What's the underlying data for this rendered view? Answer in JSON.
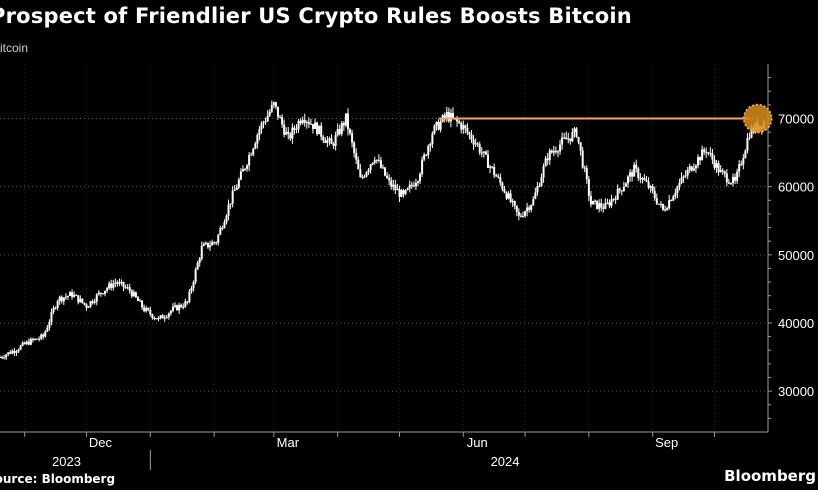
{
  "colors": {
    "background": "#000000",
    "price": "#ffffff",
    "reference_line": "#f4a36c",
    "marker_fill": "#d98c1a",
    "grid": "#5a5a5a",
    "axis": "#9a9a9a",
    "text_muted": "#cfcfcf"
  },
  "chart_data": {
    "type": "line",
    "style": "candlestick-like daily range bars",
    "title": "Prospect of Friendlier US Crypto Rules Boosts Bitcoin",
    "subtitle": "Bitcoin",
    "source": "Source: Bloomberg",
    "brand": "Bloomberg",
    "xlabel": "",
    "ylabel": "",
    "y_axis_position": "right",
    "grid": "horizontal dotted",
    "ylim": [
      24000,
      78000
    ],
    "y_ticks": [
      30000,
      40000,
      50000,
      60000,
      70000
    ],
    "y_tick_labels": [
      "30000",
      "40000",
      "50000",
      "60000",
      "70000"
    ],
    "x_range": [
      "2023-10-20",
      "2024-10-27"
    ],
    "x_month_ticks": [
      {
        "date": "2023-12-01",
        "label": "Dec"
      },
      {
        "date": "2024-03-01",
        "label": "Mar"
      },
      {
        "date": "2024-06-01",
        "label": "Jun"
      },
      {
        "date": "2024-09-01",
        "label": "Sep"
      }
    ],
    "x_minor_ticks": [
      "2023-11-01",
      "2023-12-01",
      "2024-01-01",
      "2024-02-01",
      "2024-03-01",
      "2024-04-01",
      "2024-05-01",
      "2024-06-01",
      "2024-07-01",
      "2024-08-01",
      "2024-09-01",
      "2024-10-01"
    ],
    "x_year_labels": [
      {
        "label": "2023",
        "date": "2023-12-01"
      },
      {
        "label": "2024",
        "date": "2024-07-01"
      }
    ],
    "year_boundary": "2024-01-01",
    "reference_line": {
      "value": 70000,
      "from": "2024-05-20",
      "to": "2024-10-27"
    },
    "highlight": {
      "date": "2024-10-22",
      "value": 70000
    },
    "series": [
      {
        "x": [
          "2023-10-20",
          "2023-10-27",
          "2023-11-03",
          "2023-11-10",
          "2023-11-17",
          "2023-11-24",
          "2023-12-01",
          "2023-12-08",
          "2023-12-15",
          "2023-12-22",
          "2023-12-29",
          "2024-01-05",
          "2024-01-12",
          "2024-01-19",
          "2024-01-26",
          "2024-02-02",
          "2024-02-09",
          "2024-02-16",
          "2024-02-23",
          "2024-03-01",
          "2024-03-08",
          "2024-03-15",
          "2024-03-22",
          "2024-03-29",
          "2024-04-05",
          "2024-04-12",
          "2024-04-19",
          "2024-04-26",
          "2024-05-03",
          "2024-05-10",
          "2024-05-17",
          "2024-05-24",
          "2024-05-31",
          "2024-06-07",
          "2024-06-14",
          "2024-06-21",
          "2024-06-28",
          "2024-07-05",
          "2024-07-12",
          "2024-07-19",
          "2024-07-26",
          "2024-08-02",
          "2024-08-09",
          "2024-08-16",
          "2024-08-23",
          "2024-08-30",
          "2024-09-06",
          "2024-09-13",
          "2024-09-20",
          "2024-09-27",
          "2024-10-04",
          "2024-10-11",
          "2024-10-18",
          "2024-10-25"
        ],
        "values": [
          35000,
          36000,
          37200,
          38000,
          43500,
          44200,
          42500,
          44500,
          46000,
          44800,
          42000,
          40500,
          42000,
          43000,
          51000,
          52000,
          58000,
          63000,
          68500,
          72000,
          67000,
          70500,
          68500,
          66000,
          70000,
          61000,
          64500,
          60500,
          58500,
          61500,
          68000,
          70500,
          69000,
          66500,
          63000,
          59500,
          55500,
          58000,
          64500,
          66500,
          68000,
          57500,
          57000,
          59500,
          62500,
          60000,
          56500,
          60000,
          63000,
          65500,
          62000,
          60500,
          68000,
          69500
        ]
      }
    ]
  }
}
